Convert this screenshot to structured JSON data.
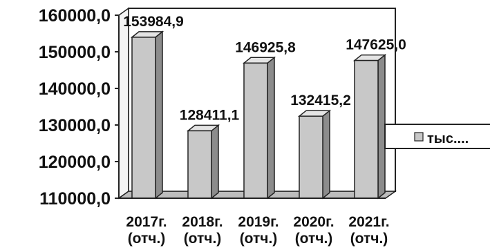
{
  "chart_data": {
    "type": "bar",
    "three_d": true,
    "categories": [
      [
        "2017г.",
        "(отч.)"
      ],
      [
        "2018г.",
        "(отч.)"
      ],
      [
        "2019г.",
        "(отч.)"
      ],
      [
        "2020г.",
        "(отч.)"
      ],
      [
        "2021г.",
        "(отч.)"
      ]
    ],
    "series": [
      {
        "name": "тыс....",
        "values": [
          153984.9,
          128411.1,
          146925.8,
          132415.2,
          147625.0
        ]
      }
    ],
    "data_labels": [
      "153984,9",
      "128411,1",
      "146925,8",
      "132415,2",
      "147625,0"
    ],
    "y_ticks": [
      "110000,0",
      "120000,0",
      "130000,0",
      "140000,0",
      "150000,0",
      "160000,0"
    ],
    "ylim": [
      110000,
      160000
    ],
    "grid": false,
    "legend_position": "right",
    "colors": {
      "bar_front": "#c8c8c8",
      "bar_side": "#8c8c8c",
      "bar_top": "#e4e4e4",
      "outline": "#222222",
      "wall": "#ffffff"
    }
  }
}
